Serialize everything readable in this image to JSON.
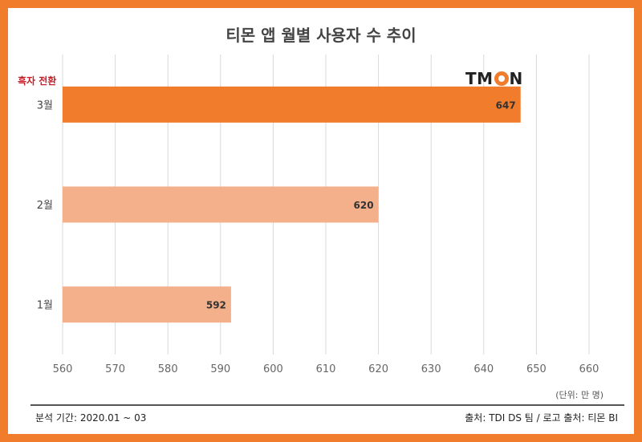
{
  "title": "티몬 앱 월별 사용자 수 추이",
  "logo": {
    "text_left": "TM",
    "text_right": "N",
    "icon": "o-ring-logo-icon"
  },
  "annotation": "흑자 전환",
  "unit_note": "(단위: 만 명)",
  "footer": {
    "period": "분석 기간: 2020.01 ~ 03",
    "source": "출처: TDI DS 팀 / 로고 출처: 티몬 BI"
  },
  "colors": {
    "frame": "#f07c2c",
    "highlight_bar": "#f07c2c",
    "bar": "#f4b08a",
    "annotation": "#c8202a",
    "grid": "#d9d9d9"
  },
  "chart_data": {
    "type": "bar",
    "orientation": "horizontal",
    "title": "티몬 앱 월별 사용자 수 추이",
    "categories": [
      "3월",
      "2월",
      "1월"
    ],
    "values": [
      647,
      620,
      592
    ],
    "highlight": "3월",
    "xlim": [
      560,
      660
    ],
    "x_ticks": [
      560,
      570,
      580,
      590,
      600,
      610,
      620,
      630,
      640,
      650,
      660
    ],
    "grid": "vertical",
    "data_labels": true
  }
}
